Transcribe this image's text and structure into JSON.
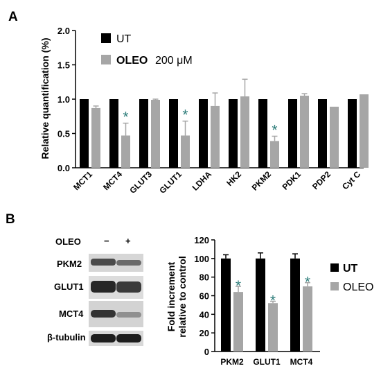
{
  "panel_a_label": "A",
  "panel_b_label": "B",
  "colors": {
    "ut": "#000000",
    "oleo": "#a6a6a6",
    "star": "#2e7d7a"
  },
  "blot": {
    "treatment_label": "OLEO",
    "minus": "−",
    "plus": "+",
    "rows": [
      "PKM2",
      "GLUT1",
      "MCT4",
      "β-tubulin"
    ]
  },
  "chart_data": [
    {
      "type": "bar",
      "panel": "A",
      "ylabel": "Relative quantification (%)",
      "ylim": [
        0,
        2.0
      ],
      "yticks": [
        "0.0",
        "0.5",
        "1.0",
        "1.5",
        "2.0"
      ],
      "categories": [
        "MCT1",
        "MCT4",
        "GLUT3",
        "GLUT1",
        "LDHA",
        "HK2",
        "PKM2",
        "PDK1",
        "PDP2",
        "Cyt C"
      ],
      "legend_position": "top-left",
      "series": [
        {
          "name": "UT",
          "values": [
            1.0,
            1.0,
            1.0,
            1.0,
            1.0,
            1.0,
            1.0,
            1.0,
            1.0,
            1.0
          ],
          "errors": [
            0,
            0,
            0,
            0,
            0,
            0,
            0,
            0,
            0,
            0
          ]
        },
        {
          "name": "OLEO",
          "name_suffix": "200 μM",
          "values": [
            0.87,
            0.47,
            0.99,
            0.47,
            0.9,
            1.04,
            0.39,
            1.05,
            0.89,
            1.07
          ],
          "errors": [
            0.03,
            0.18,
            0.01,
            0.21,
            0.19,
            0.25,
            0.07,
            0.03,
            0,
            0
          ]
        }
      ],
      "significant": [
        1,
        3,
        6
      ],
      "significance_marker": "*"
    },
    {
      "type": "bar",
      "panel": "B",
      "ylabel_lines": [
        "Fold increment",
        "relative to control"
      ],
      "ylim": [
        0,
        120
      ],
      "yticks": [
        "0",
        "20",
        "40",
        "60",
        "80",
        "100",
        "120"
      ],
      "categories": [
        "PKM2",
        "GLUT1",
        "MCT4"
      ],
      "legend_position": "right",
      "series": [
        {
          "name": "UT",
          "values": [
            100,
            100,
            100
          ],
          "errors": [
            4,
            6,
            5
          ]
        },
        {
          "name": "OLEO",
          "values": [
            64,
            52,
            70
          ],
          "errors": [
            6,
            2,
            4
          ]
        }
      ],
      "significant": [
        0,
        1,
        2
      ],
      "significance_marker": "*"
    }
  ]
}
